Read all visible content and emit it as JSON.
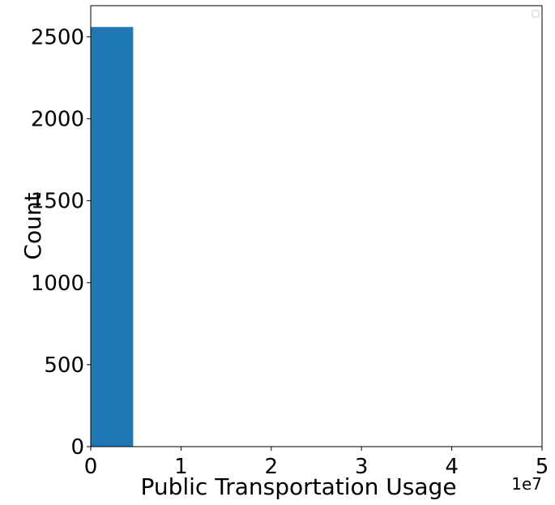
{
  "chart_data": {
    "type": "bar",
    "title": "",
    "xlabel": "Public Transportation Usage",
    "ylabel": "Count",
    "x_offset_label": "1e7",
    "xlim": [
      0,
      5
    ],
    "ylim": [
      0,
      2690
    ],
    "x_ticks": [
      0,
      1,
      2,
      3,
      4,
      5
    ],
    "x_tick_labels": [
      "0",
      "1",
      "2",
      "3",
      "4",
      "5"
    ],
    "y_ticks": [
      0,
      500,
      1000,
      1500,
      2000,
      2500
    ],
    "y_tick_labels": [
      "0",
      "500",
      "1000",
      "1500",
      "2000",
      "2500"
    ],
    "bins": [
      {
        "x_start": 0.0,
        "x_end": 0.47,
        "count": 2560
      }
    ],
    "grid": false,
    "legend": {
      "placement": "top-right",
      "entries": []
    },
    "colors": {
      "bar": "#1f77b4",
      "axes": "#000000",
      "legend_border": "#cccccc"
    }
  }
}
